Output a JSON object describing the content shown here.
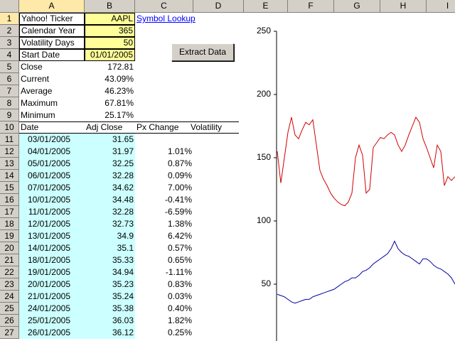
{
  "sheet": {
    "columns": [
      "A",
      "B",
      "C",
      "D",
      "E",
      "F",
      "G",
      "H",
      "I"
    ],
    "row_numbers": [
      "1",
      "2",
      "3",
      "4",
      "5",
      "6",
      "7",
      "8",
      "9",
      "10",
      "11",
      "12",
      "13",
      "14",
      "15",
      "16",
      "17",
      "18",
      "19",
      "20",
      "21",
      "22",
      "23",
      "24",
      "25",
      "26",
      "27"
    ],
    "rows": [
      [
        "Yahoo! Ticker",
        "AAPL",
        "Symbol Lookup",
        null
      ],
      [
        "Calendar Year",
        "365",
        null,
        null
      ],
      [
        "Volatility Days",
        "50",
        null,
        null
      ],
      [
        "Start Date",
        "01/01/2005",
        null,
        null
      ],
      [
        "Close",
        "172.81",
        null,
        null
      ],
      [
        "Current",
        "43.09%",
        null,
        null
      ],
      [
        "Average",
        "46.23%",
        null,
        null
      ],
      [
        "Maximum",
        "67.81%",
        null,
        null
      ],
      [
        "Minimum",
        "25.17%",
        null,
        null
      ],
      [
        "Date",
        "Adj Close",
        "Px Change",
        "Volatility"
      ],
      [
        "03/01/2005",
        "31.65",
        null,
        null
      ],
      [
        "04/01/2005",
        "31.97",
        "1.01%",
        null
      ],
      [
        "05/01/2005",
        "32.25",
        "0.87%",
        null
      ],
      [
        "06/01/2005",
        "32.28",
        "0.09%",
        null
      ],
      [
        "07/01/2005",
        "34.62",
        "7.00%",
        null
      ],
      [
        "10/01/2005",
        "34.48",
        "-0.41%",
        null
      ],
      [
        "11/01/2005",
        "32.28",
        "-6.59%",
        null
      ],
      [
        "12/01/2005",
        "32.73",
        "1.38%",
        null
      ],
      [
        "13/01/2005",
        "34.9",
        "6.42%",
        null
      ],
      [
        "14/01/2005",
        "35.1",
        "0.57%",
        null
      ],
      [
        "18/01/2005",
        "35.33",
        "0.65%",
        null
      ],
      [
        "19/01/2005",
        "34.94",
        "-1.11%",
        null
      ],
      [
        "20/01/2005",
        "35.23",
        "0.83%",
        null
      ],
      [
        "21/01/2005",
        "35.24",
        "0.03%",
        null
      ],
      [
        "24/01/2005",
        "35.38",
        "0.40%",
        null
      ],
      [
        "25/01/2005",
        "36.03",
        "1.82%",
        null
      ],
      [
        "26/01/2005",
        "36.12",
        "0.25%",
        null
      ]
    ],
    "button": "Extract Data"
  },
  "chart_data": {
    "type": "line",
    "ylim": [
      0,
      250
    ],
    "yticks": [
      50,
      100,
      150,
      200,
      250
    ],
    "series": [
      {
        "color": "#d00000",
        "values": [
          155,
          130,
          150,
          170,
          182,
          168,
          165,
          172,
          178,
          176,
          180,
          160,
          140,
          133,
          128,
          122,
          118,
          115,
          113,
          112,
          115,
          122,
          150,
          160,
          152,
          122,
          125,
          158,
          162,
          166,
          165,
          168,
          170,
          168,
          160,
          155,
          160,
          168,
          175,
          182,
          178,
          165,
          158,
          150,
          142,
          160,
          155,
          128,
          135,
          132,
          135
        ]
      },
      {
        "color": "#0000a0",
        "values": [
          42,
          41,
          40,
          38,
          36,
          35,
          36,
          37,
          38,
          38,
          40,
          41,
          42,
          43,
          44,
          45,
          46,
          48,
          50,
          52,
          53,
          55,
          55,
          57,
          60,
          61,
          63,
          66,
          68,
          70,
          72,
          74,
          78,
          84,
          78,
          75,
          73,
          72,
          70,
          68,
          66,
          70,
          70,
          68,
          65,
          63,
          62,
          60,
          58,
          55,
          50
        ]
      }
    ]
  }
}
